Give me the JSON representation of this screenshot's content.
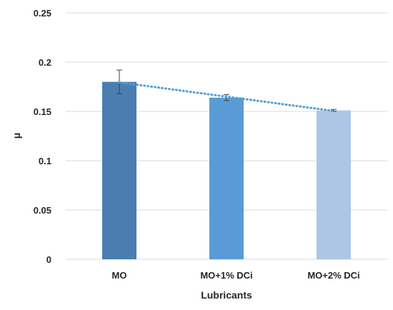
{
  "chart_data": {
    "type": "bar",
    "categories": [
      "MO",
      "MO+1% DCi",
      "MO+2% DCi"
    ],
    "values": [
      0.18,
      0.164,
      0.151
    ],
    "errors": [
      0.012,
      0.003,
      0.001
    ],
    "bar_colors": [
      "#4a7eb0",
      "#5b9bd5",
      "#adc6e5"
    ],
    "trendline": {
      "type": "linear",
      "style": "dotted",
      "color": "#4f9fd8"
    },
    "xlabel": "Lubricants",
    "ylabel": "μ",
    "ylim": [
      0,
      0.25
    ],
    "yticks": [
      "0",
      "0.05",
      "0.1",
      "0.15",
      "0.2",
      "0.25"
    ],
    "grid": true,
    "legend": "none"
  }
}
